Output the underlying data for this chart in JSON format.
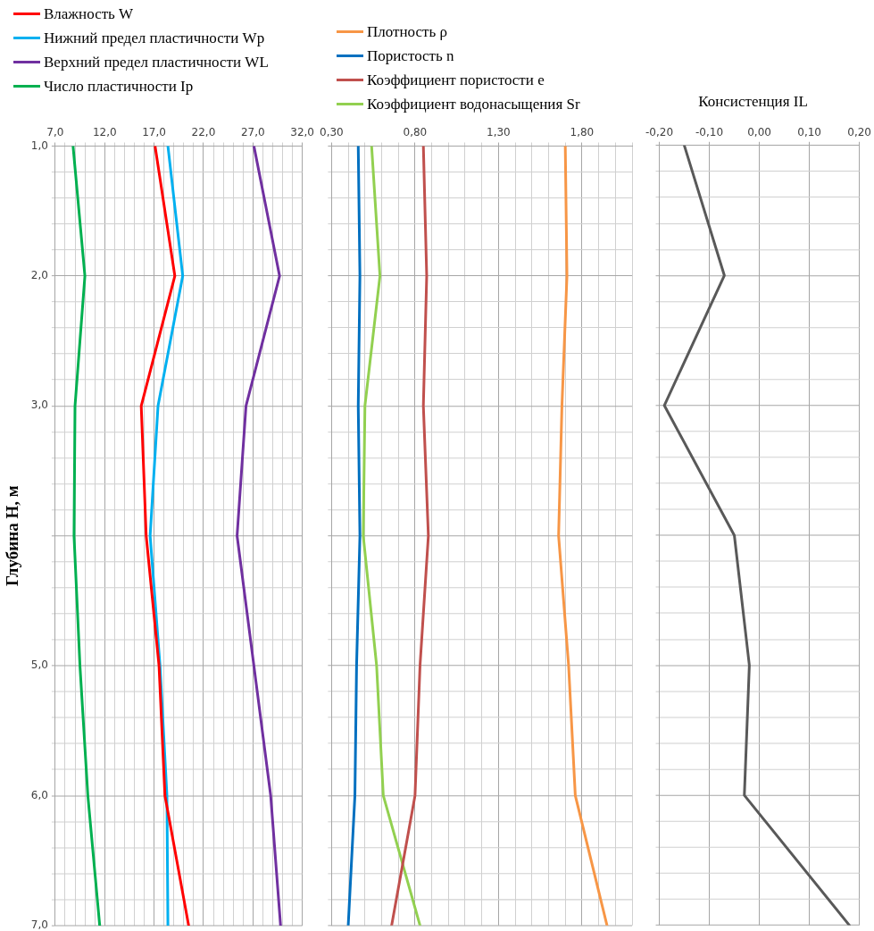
{
  "chart_data": [
    {
      "type": "line",
      "ylabel": "Глубина Н, м",
      "legend": "top left",
      "grid": true,
      "xlim": [
        7,
        32
      ],
      "xticks": [
        {
          "value": 7,
          "label": "7,0"
        },
        {
          "value": 8,
          "label": null
        },
        {
          "value": 9,
          "label": null
        },
        {
          "value": 10,
          "label": null
        },
        {
          "value": 11,
          "label": null
        },
        {
          "value": 12,
          "label": "12,0"
        },
        {
          "value": 13,
          "label": null
        },
        {
          "value": 14,
          "label": null
        },
        {
          "value": 15,
          "label": null
        },
        {
          "value": 16,
          "label": null
        },
        {
          "value": 17,
          "label": "17,0"
        },
        {
          "value": 18,
          "label": null
        },
        {
          "value": 19,
          "label": null
        },
        {
          "value": 20,
          "label": null
        },
        {
          "value": 21,
          "label": null
        },
        {
          "value": 22,
          "label": "22,0"
        },
        {
          "value": 23,
          "label": null
        },
        {
          "value": 24,
          "label": null
        },
        {
          "value": 25,
          "label": null
        },
        {
          "value": 26,
          "label": null
        },
        {
          "value": 27,
          "label": "27,0"
        },
        {
          "value": 28,
          "label": null
        },
        {
          "value": 29,
          "label": null
        },
        {
          "value": 30,
          "label": null
        },
        {
          "value": 31,
          "label": null
        },
        {
          "value": 32,
          "label": "32,0"
        }
      ],
      "ylim": [
        7,
        1
      ],
      "yticks": [
        {
          "value": 1,
          "label": "1,0"
        },
        {
          "value": 1.2,
          "label": null
        },
        {
          "value": 1.4,
          "label": null
        },
        {
          "value": 1.6,
          "label": null
        },
        {
          "value": 1.8,
          "label": null
        },
        {
          "value": 2,
          "label": "2,0"
        },
        {
          "value": 2.2,
          "label": null
        },
        {
          "value": 2.4,
          "label": null
        },
        {
          "value": 2.6,
          "label": null
        },
        {
          "value": 2.8,
          "label": null
        },
        {
          "value": 3,
          "label": "3,0"
        },
        {
          "value": 3.2,
          "label": null
        },
        {
          "value": 3.4,
          "label": null
        },
        {
          "value": 3.6,
          "label": null
        },
        {
          "value": 3.8,
          "label": null
        },
        {
          "value": 4,
          "label": null
        },
        {
          "value": 4.2,
          "label": null
        },
        {
          "value": 4.4,
          "label": null
        },
        {
          "value": 4.6,
          "label": null
        },
        {
          "value": 4.8,
          "label": null
        },
        {
          "value": 5,
          "label": "5,0"
        },
        {
          "value": 5.2,
          "label": null
        },
        {
          "value": 5.4,
          "label": null
        },
        {
          "value": 5.6,
          "label": null
        },
        {
          "value": 5.8,
          "label": null
        },
        {
          "value": 6,
          "label": "6,0"
        },
        {
          "value": 6.2,
          "label": null
        },
        {
          "value": 6.4,
          "label": null
        },
        {
          "value": 6.6,
          "label": null
        },
        {
          "value": 6.8,
          "label": null
        },
        {
          "value": 7,
          "label": "7,0"
        }
      ],
      "series": [
        {
          "name": "Влажность W",
          "color": "#ff0000",
          "x": [
            17.1,
            19.1,
            15.7,
            16.2,
            17.5,
            18.1,
            20.5
          ],
          "values": [
            1,
            2,
            3,
            4,
            5,
            6,
            7
          ]
        },
        {
          "name": "Нижний предел пластичности Wp",
          "color": "#00b0f0",
          "x": [
            18.4,
            19.9,
            17.4,
            16.6,
            17.6,
            18.3,
            18.4
          ],
          "values": [
            1,
            2,
            3,
            4,
            5,
            6,
            7
          ]
        },
        {
          "name": "Верхний предел пластичности WL",
          "color": "#7030a0",
          "x": [
            27.1,
            29.7,
            26.3,
            25.4,
            27.1,
            28.8,
            29.8
          ],
          "values": [
            1,
            2,
            3,
            4,
            5,
            6,
            7
          ]
        },
        {
          "name": "Число пластичности Ip",
          "color": "#00b050",
          "x": [
            8.8,
            10.0,
            9.0,
            8.9,
            9.5,
            10.3,
            11.5
          ],
          "values": [
            1,
            2,
            3,
            4,
            5,
            6,
            7
          ]
        }
      ]
    },
    {
      "type": "line",
      "legend": "top left",
      "grid": true,
      "tick_labels": "x",
      "xlim": [
        0.3,
        2.1
      ],
      "xticks": [
        {
          "value": 0.3,
          "label": "0,30"
        },
        {
          "value": 0.4,
          "label": null
        },
        {
          "value": 0.5,
          "label": null
        },
        {
          "value": 0.6,
          "label": null
        },
        {
          "value": 0.7,
          "label": null
        },
        {
          "value": 0.8,
          "label": "0,80"
        },
        {
          "value": 0.9,
          "label": null
        },
        {
          "value": 1.0,
          "label": null
        },
        {
          "value": 1.1,
          "label": null
        },
        {
          "value": 1.2,
          "label": null
        },
        {
          "value": 1.3,
          "label": "1,30"
        },
        {
          "value": 1.4,
          "label": null
        },
        {
          "value": 1.5,
          "label": null
        },
        {
          "value": 1.6,
          "label": null
        },
        {
          "value": 1.7,
          "label": null
        },
        {
          "value": 1.8,
          "label": "1,80"
        },
        {
          "value": 1.9,
          "label": null
        },
        {
          "value": 2.0,
          "label": null
        },
        {
          "value": 2.1,
          "label": null
        }
      ],
      "ylim": [
        7,
        1
      ],
      "yticks": [
        {
          "value": 1,
          "label": null
        },
        {
          "value": 1.2,
          "label": null
        },
        {
          "value": 1.4,
          "label": null
        },
        {
          "value": 1.6,
          "label": null
        },
        {
          "value": 1.8,
          "label": null
        },
        {
          "value": 2,
          "label": null
        },
        {
          "value": 2.2,
          "label": null
        },
        {
          "value": 2.4,
          "label": null
        },
        {
          "value": 2.6,
          "label": null
        },
        {
          "value": 2.8,
          "label": null
        },
        {
          "value": 3,
          "label": null
        },
        {
          "value": 3.2,
          "label": null
        },
        {
          "value": 3.4,
          "label": null
        },
        {
          "value": 3.6,
          "label": null
        },
        {
          "value": 3.8,
          "label": null
        },
        {
          "value": 4,
          "label": null
        },
        {
          "value": 4.2,
          "label": null
        },
        {
          "value": 4.4,
          "label": null
        },
        {
          "value": 4.6,
          "label": null
        },
        {
          "value": 4.8,
          "label": null
        },
        {
          "value": 5,
          "label": null
        },
        {
          "value": 5.2,
          "label": null
        },
        {
          "value": 5.4,
          "label": null
        },
        {
          "value": 5.6,
          "label": null
        },
        {
          "value": 5.8,
          "label": null
        },
        {
          "value": 6,
          "label": null
        },
        {
          "value": 6.2,
          "label": null
        },
        {
          "value": 6.4,
          "label": null
        },
        {
          "value": 6.6,
          "label": null
        },
        {
          "value": 6.8,
          "label": null
        },
        {
          "value": 7,
          "label": null
        }
      ],
      "series": [
        {
          "name": "Плотность ρ",
          "color": "#f79646",
          "x": [
            1.7,
            1.71,
            1.68,
            1.66,
            1.72,
            1.76,
            1.95
          ],
          "values": [
            1,
            2,
            3,
            4,
            5,
            6,
            7
          ]
        },
        {
          "name": "Пористость n",
          "color": "#0070c0",
          "x": [
            0.46,
            0.47,
            0.46,
            0.47,
            0.45,
            0.44,
            0.4
          ],
          "values": [
            1,
            2,
            3,
            4,
            5,
            6,
            7
          ]
        },
        {
          "name": "Коэффициент пористости e",
          "color": "#c0504d",
          "x": [
            0.85,
            0.87,
            0.85,
            0.88,
            0.83,
            0.8,
            0.66
          ],
          "values": [
            1,
            2,
            3,
            4,
            5,
            6,
            7
          ]
        },
        {
          "name": "Коэффициент водонасыщения Sr",
          "color": "#92d050",
          "x": [
            0.54,
            0.59,
            0.5,
            0.49,
            0.57,
            0.61,
            0.83
          ],
          "values": [
            1,
            2,
            3,
            4,
            5,
            6,
            7
          ]
        }
      ]
    },
    {
      "type": "line",
      "title": "Консистенция IL",
      "grid": true,
      "tick_labels": "x",
      "xlim": [
        -0.2,
        0.2
      ],
      "xticks": [
        {
          "value": -0.2,
          "label": "-0,20"
        },
        {
          "value": -0.1,
          "label": "-0,10"
        },
        {
          "value": 0,
          "label": "0,00"
        },
        {
          "value": 0.1,
          "label": "0,10"
        },
        {
          "value": 0.2,
          "label": "0,20"
        }
      ],
      "ylim": [
        7,
        1
      ],
      "yticks": [
        {
          "value": 1,
          "label": null
        },
        {
          "value": 1.2,
          "label": null
        },
        {
          "value": 1.4,
          "label": null
        },
        {
          "value": 1.6,
          "label": null
        },
        {
          "value": 1.8,
          "label": null
        },
        {
          "value": 2,
          "label": null
        },
        {
          "value": 2.2,
          "label": null
        },
        {
          "value": 2.4,
          "label": null
        },
        {
          "value": 2.6,
          "label": null
        },
        {
          "value": 2.8,
          "label": null
        },
        {
          "value": 3,
          "label": null
        },
        {
          "value": 3.2,
          "label": null
        },
        {
          "value": 3.4,
          "label": null
        },
        {
          "value": 3.6,
          "label": null
        },
        {
          "value": 3.8,
          "label": null
        },
        {
          "value": 4,
          "label": null
        },
        {
          "value": 4.2,
          "label": null
        },
        {
          "value": 4.4,
          "label": null
        },
        {
          "value": 4.6,
          "label": null
        },
        {
          "value": 4.8,
          "label": null
        },
        {
          "value": 5,
          "label": null
        },
        {
          "value": 5.2,
          "label": null
        },
        {
          "value": 5.4,
          "label": null
        },
        {
          "value": 5.6,
          "label": null
        },
        {
          "value": 5.8,
          "label": null
        },
        {
          "value": 6,
          "label": null
        },
        {
          "value": 6.2,
          "label": null
        },
        {
          "value": 6.4,
          "label": null
        },
        {
          "value": 6.6,
          "label": null
        },
        {
          "value": 6.8,
          "label": null
        },
        {
          "value": 7,
          "label": null
        }
      ],
      "series": [
        {
          "color": "#595959",
          "x": [
            -0.15,
            -0.07,
            -0.19,
            -0.05,
            -0.02,
            -0.03,
            0.18
          ],
          "values": [
            1,
            2,
            3,
            4,
            5,
            6,
            7
          ]
        }
      ]
    }
  ]
}
